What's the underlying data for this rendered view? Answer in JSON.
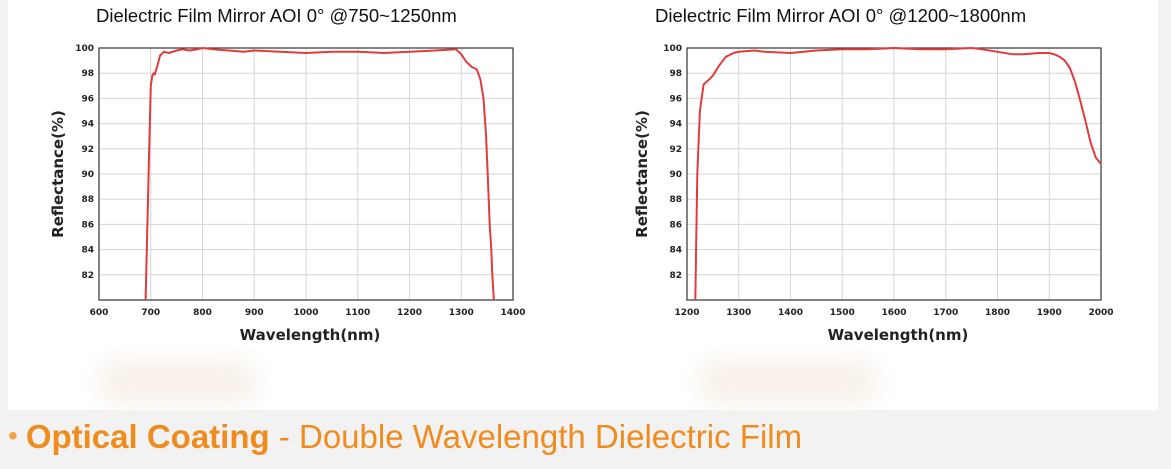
{
  "chart_data": [
    {
      "type": "line",
      "title": "Dielectric Film Mirror AOI 0°  @750~1250nm",
      "xlabel": "Wavelength(nm)",
      "ylabel": "Reflectance(%)",
      "xlim": [
        600,
        1400
      ],
      "ylim": [
        80,
        100
      ],
      "xticks": [
        "600",
        "700",
        "800",
        "900",
        "1000",
        "1100",
        "1200",
        "1300",
        "1400"
      ],
      "yticks": [
        "82",
        "84",
        "86",
        "88",
        "90",
        "92",
        "94",
        "96",
        "98",
        "100"
      ],
      "grid": true,
      "line_color": "#e03c3c",
      "series": [
        {
          "x": [
            690,
            693,
            697,
            700,
            703,
            706,
            708,
            712,
            718,
            725,
            735,
            750,
            760,
            775,
            790,
            800,
            820,
            850,
            880,
            900,
            950,
            1000,
            1050,
            1100,
            1150,
            1200,
            1250,
            1290,
            1300,
            1310,
            1320,
            1330,
            1337,
            1343,
            1348,
            1352,
            1355,
            1358,
            1360,
            1363
          ],
          "y": [
            80,
            85,
            92,
            97,
            97.8,
            98,
            97.9,
            98.5,
            99.4,
            99.7,
            99.6,
            99.8,
            99.9,
            99.8,
            99.9,
            100,
            99.9,
            99.8,
            99.7,
            99.8,
            99.7,
            99.6,
            99.7,
            99.7,
            99.6,
            99.7,
            99.8,
            99.9,
            99.5,
            98.9,
            98.5,
            98.3,
            97.5,
            96,
            93,
            89,
            86,
            84,
            82,
            80
          ]
        }
      ]
    },
    {
      "type": "line",
      "title": "Dielectric Film Mirror AOI 0°  @1200~1800nm",
      "xlabel": "Wavelength(nm)",
      "ylabel": "Reflectance(%)",
      "xlim": [
        1200,
        2000
      ],
      "ylim": [
        80,
        100
      ],
      "xticks": [
        "1200",
        "1300",
        "1400",
        "1500",
        "1600",
        "1700",
        "1800",
        "1900",
        "2000"
      ],
      "yticks": [
        "82",
        "84",
        "86",
        "88",
        "90",
        "92",
        "94",
        "96",
        "98",
        "100"
      ],
      "grid": true,
      "line_color": "#e03c3c",
      "series": [
        {
          "x": [
            1216,
            1220,
            1225,
            1232,
            1240,
            1250,
            1262,
            1275,
            1290,
            1300,
            1330,
            1350,
            1400,
            1450,
            1500,
            1550,
            1600,
            1650,
            1700,
            1750,
            1770,
            1800,
            1830,
            1850,
            1880,
            1900,
            1910,
            1920,
            1930,
            1940,
            1950,
            1960,
            1970,
            1980,
            1990,
            2000
          ],
          "y": [
            80,
            90,
            95,
            97.1,
            97.4,
            97.8,
            98.6,
            99.3,
            99.6,
            99.7,
            99.8,
            99.7,
            99.6,
            99.8,
            99.9,
            99.9,
            100,
            99.9,
            99.9,
            100,
            99.9,
            99.7,
            99.5,
            99.5,
            99.6,
            99.6,
            99.5,
            99.3,
            99.0,
            98.4,
            97.3,
            95.8,
            94.2,
            92.5,
            91.3,
            90.8
          ]
        }
      ]
    }
  ],
  "footer": {
    "bullet": "•",
    "bold": "Optical Coating",
    "rest": " - Double Wavelength Dielectric Film"
  }
}
